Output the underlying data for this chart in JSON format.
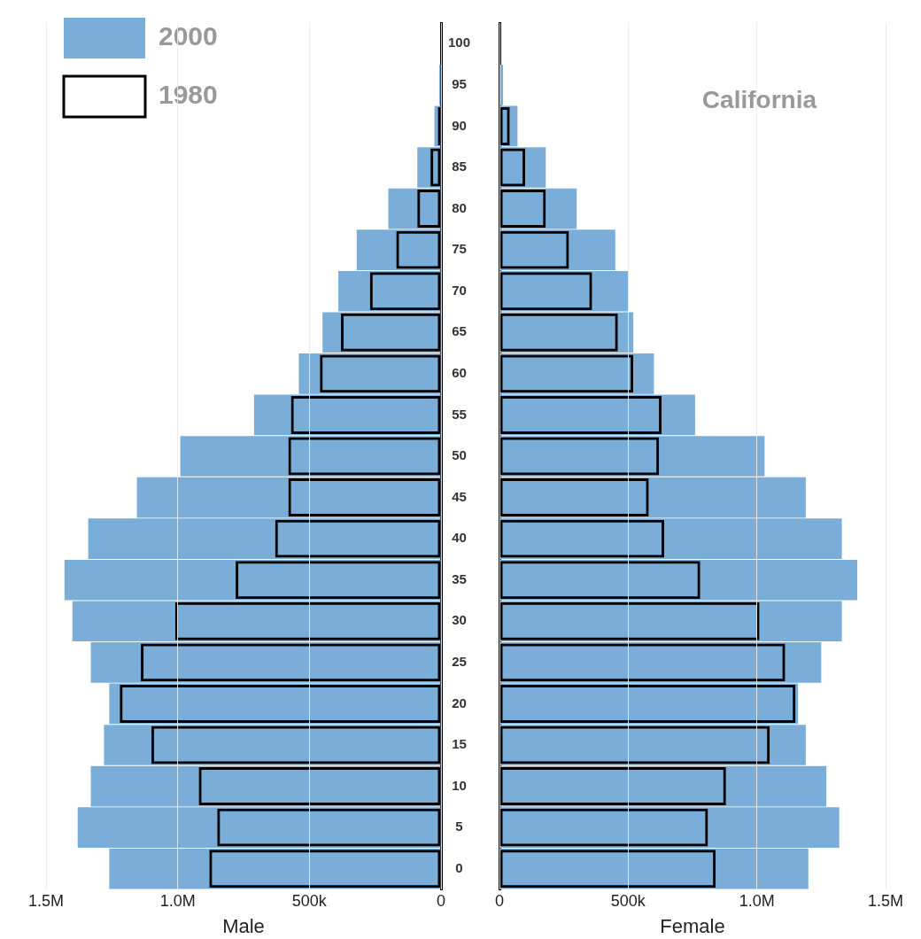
{
  "chart_data": [
    {
      "type": "bar",
      "orientation": "horizontal",
      "xlabel": "Male",
      "categories": [
        "100",
        "95",
        "90",
        "85",
        "80",
        "75",
        "70",
        "65",
        "60",
        "55",
        "50",
        "45",
        "40",
        "35",
        "30",
        "25",
        "20",
        "15",
        "10",
        "5",
        "0"
      ],
      "series": [
        {
          "name": "2000",
          "color": "#7aaed9",
          "values": [
            null,
            7000,
            25000,
            90000,
            200000,
            320000,
            390000,
            450000,
            540000,
            710000,
            990000,
            1155000,
            1340000,
            1430000,
            1400000,
            1330000,
            1260000,
            1280000,
            1330000,
            1380000,
            1260000
          ]
        },
        {
          "name": "1980",
          "color": "#000000",
          "values": [
            null,
            3000,
            12000,
            40000,
            90000,
            170000,
            270000,
            380000,
            460000,
            570000,
            580000,
            580000,
            630000,
            780000,
            1010000,
            1140000,
            1220000,
            1100000,
            920000,
            850000,
            880000
          ]
        }
      ],
      "xlim": [
        1500000,
        0
      ],
      "xticks": [
        {
          "value": 1500000,
          "label": "1.5M"
        },
        {
          "value": 1000000,
          "label": "1.0M"
        },
        {
          "value": 500000,
          "label": "500k"
        },
        0
      ],
      "grid": "x",
      "legend": "top left"
    },
    {
      "type": "bar",
      "orientation": "horizontal",
      "title": "California",
      "xlabel": "Female",
      "categories": [
        "100",
        "95",
        "90",
        "85",
        "80",
        "75",
        "70",
        "65",
        "60",
        "55",
        "50",
        "45",
        "40",
        "35",
        "30",
        "25",
        "20",
        "15",
        "10",
        "5",
        "0"
      ],
      "series": [
        {
          "name": "2000",
          "color": "#7aaed9",
          "values": [
            null,
            14000,
            70000,
            180000,
            300000,
            450000,
            500000,
            520000,
            600000,
            760000,
            1030000,
            1190000,
            1330000,
            1390000,
            1330000,
            1250000,
            1160000,
            1190000,
            1270000,
            1320000,
            1200000
          ]
        },
        {
          "name": "1980",
          "color": "#000000",
          "values": [
            null,
            null,
            40000,
            100000,
            180000,
            270000,
            360000,
            460000,
            520000,
            630000,
            620000,
            580000,
            640000,
            780000,
            1010000,
            1110000,
            1150000,
            1050000,
            880000,
            810000,
            840000
          ]
        }
      ],
      "xlim": [
        0,
        1500000
      ],
      "xticks": [
        0,
        {
          "value": 500000,
          "label": "500k"
        },
        {
          "value": 1000000,
          "label": "1.0M"
        },
        {
          "value": 1500000,
          "label": "1.5M"
        }
      ],
      "grid": "x",
      "tick_labels": "x"
    }
  ]
}
